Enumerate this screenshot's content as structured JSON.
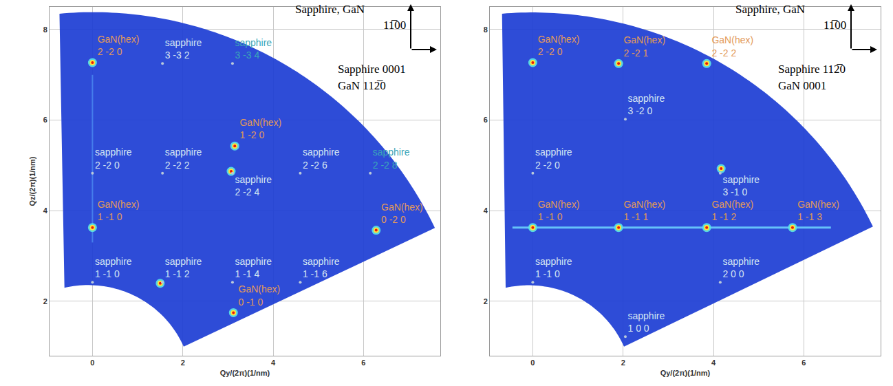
{
  "chart_data": [
    {
      "type": "scatter",
      "x_label": "Qy/(2π)(1/nm)",
      "y_label": "Qz/(2π)(1/nm)",
      "xlim": [
        -0.95,
        7.7
      ],
      "ylim": [
        0.8,
        8.5
      ],
      "xticks": [
        0,
        2,
        4,
        6
      ],
      "yticks": [
        2,
        4,
        6,
        8
      ],
      "grid": true,
      "direction_labels": [
        "Sapphire, GaN",
        "11̅00",
        "Sapphire 0001",
        "GaN 112̅0"
      ],
      "scan_area": {
        "corners": [
          [
            -0.62,
            2.3
          ],
          [
            2.02,
            1.0
          ],
          [
            7.58,
            3.62
          ],
          [
            -0.73,
            8.35
          ]
        ]
      },
      "series": [
        {
          "name": "GaN(hex)",
          "color": "#e39a5a",
          "labels": [
            "2 -2 0",
            "1 -2 0",
            "1 -1 0",
            "0 -2 0",
            "0 -1 0"
          ],
          "x": [
            0,
            3.15,
            0,
            6.28,
            3.12
          ],
          "y": [
            7.27,
            5.43,
            3.63,
            3.57,
            1.75
          ]
        },
        {
          "name": "sapphire",
          "colors": [
            "#d5e6f2",
            "#3aa6b9",
            "#d5e6f2",
            "#d5e6f2",
            "#d5e6f2",
            "#d5e6f2",
            "#3aa6b9",
            "#d5e6f2",
            "#d5e6f2",
            "#d5e6f2",
            "#d5e6f2"
          ],
          "labels": [
            "3 -3 2",
            "3 -3 4",
            "2 -2 0",
            "2 -2 2",
            "2 -2 4",
            "2 -2 6",
            "2 -2 8",
            "1 -1 0",
            "1 -1 2",
            "1 -1 4",
            "1 -1 6"
          ],
          "x": [
            1.55,
            3.1,
            0,
            1.55,
            3.1,
            4.6,
            6.15,
            0,
            1.55,
            3.1,
            4.6
          ],
          "y": [
            7.25,
            7.25,
            4.83,
            4.83,
            4.83,
            4.83,
            4.83,
            2.42,
            2.42,
            2.42,
            2.42
          ]
        }
      ],
      "spots": {
        "x": [
          0,
          0,
          3.15,
          3.07,
          6.28,
          3.12,
          1.5
        ],
        "y": [
          7.27,
          3.63,
          5.43,
          4.87,
          3.57,
          1.75,
          2.4
        ]
      },
      "streaks": [
        {
          "x": [
            0,
            0
          ],
          "y": [
            3.3,
            7.0
          ]
        }
      ]
    },
    {
      "type": "scatter",
      "x_label": "Qy/(2π)(1/nm)",
      "xlim": [
        -0.95,
        7.7
      ],
      "ylim": [
        0.8,
        8.5
      ],
      "xticks": [
        0,
        2,
        4,
        6
      ],
      "yticks": [
        2,
        4,
        6,
        8
      ],
      "grid": true,
      "direction_labels": [
        "Sapphire, GaN",
        "11̅00",
        "Sapphire 112̅0",
        "GaN 0001"
      ],
      "scan_area": {
        "corners": [
          [
            -0.6,
            2.3
          ],
          [
            2.02,
            1.0
          ],
          [
            7.53,
            3.65
          ],
          [
            -0.68,
            8.35
          ]
        ]
      },
      "series": [
        {
          "name": "GaN(hex)",
          "color": "#e39a5a",
          "labels": [
            "2 -2 0",
            "2 -2 1",
            "2 -2 2",
            "1 -1 0",
            "1 -1 1",
            "1 -1 2",
            "1 -1 3"
          ],
          "x": [
            0,
            1.9,
            3.85,
            0,
            1.9,
            3.85,
            5.75
          ],
          "y": [
            7.27,
            7.25,
            7.25,
            3.63,
            3.63,
            3.63,
            3.63
          ]
        },
        {
          "name": "sapphire",
          "color": "#d5e6f2",
          "labels": [
            "3 -2 0",
            "2 -2 0",
            "3 -1 0",
            "1 -1 0",
            "2 0 0",
            "1 0 0"
          ],
          "x": [
            2.05,
            0,
            4.15,
            0,
            4.15,
            2.05
          ],
          "y": [
            6.02,
            4.83,
            4.83,
            2.42,
            2.42,
            1.22
          ]
        }
      ],
      "spots": {
        "x": [
          0,
          1.9,
          3.85,
          0,
          1.9,
          3.85,
          5.75,
          4.17
        ],
        "y": [
          7.27,
          7.25,
          7.25,
          3.63,
          3.63,
          3.63,
          3.63,
          4.93
        ]
      },
      "streaks": [
        {
          "x": [
            -0.45,
            6.6
          ],
          "y": [
            3.63,
            3.63
          ]
        }
      ]
    }
  ]
}
